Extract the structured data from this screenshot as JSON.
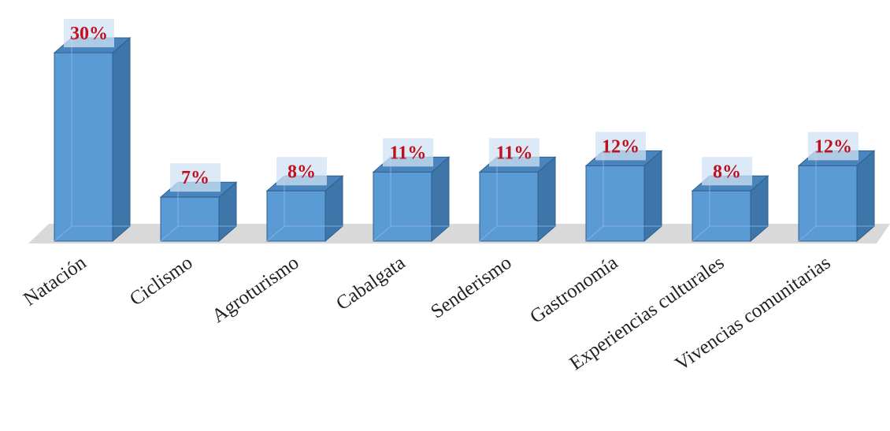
{
  "chart_data": {
    "type": "bar",
    "categories": [
      "Natación",
      "Ciclismo",
      "Agroturismo",
      "Cabalgata",
      "Senderismo",
      "Gastronomía",
      "Experiencias culturales",
      "Vivencias comunitarias"
    ],
    "values": [
      30,
      7,
      8,
      11,
      11,
      12,
      8,
      12
    ],
    "value_labels": [
      "30%",
      "7%",
      "8%",
      "11%",
      "11%",
      "12%",
      "8%",
      "12%"
    ],
    "ylim": [
      0,
      30
    ],
    "grid": false,
    "legend": "none",
    "style": "3d-column",
    "colors": {
      "bar_front": "#5b9bd5",
      "bar_side": "#3f76aa",
      "bar_top": "#4a84bd",
      "bar_edge": "#2f5f8f",
      "floor": "#d9d9d9",
      "label_box": "#cfe3f3",
      "label_text": "#c0101f"
    }
  }
}
